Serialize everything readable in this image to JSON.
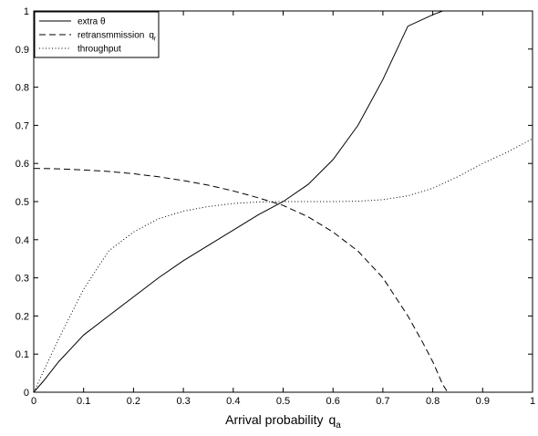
{
  "chart_data": {
    "type": "line",
    "title": "",
    "xlabel": "Arrival probability",
    "xlabel_symbol": "q",
    "xlabel_subscript": "a",
    "ylabel": "",
    "xlim": [
      0,
      1
    ],
    "ylim": [
      0,
      1
    ],
    "x_ticks": [
      "0",
      "0.1",
      "0.2",
      "0.3",
      "0.4",
      "0.5",
      "0.6",
      "0.7",
      "0.8",
      "0.9",
      "1"
    ],
    "y_ticks": [
      "0",
      "0.1",
      "0.2",
      "0.3",
      "0.4",
      "0.5",
      "0.6",
      "0.7",
      "0.8",
      "0.9",
      "1"
    ],
    "grid": false,
    "legend_position": "top-left",
    "series": [
      {
        "name": "extra θ",
        "style": "solid",
        "color": "#000000",
        "x": [
          0,
          0.02,
          0.05,
          0.1,
          0.15,
          0.2,
          0.25,
          0.3,
          0.35,
          0.4,
          0.45,
          0.5,
          0.55,
          0.6,
          0.65,
          0.7,
          0.75,
          0.8,
          0.82,
          0.84,
          1
        ],
        "y": [
          0,
          0.03,
          0.08,
          0.15,
          0.2,
          0.25,
          0.3,
          0.345,
          0.385,
          0.425,
          0.465,
          0.5,
          0.545,
          0.61,
          0.7,
          0.82,
          0.96,
          0.99,
          1.0,
          1.0,
          1.0
        ]
      },
      {
        "name": "retransmmission",
        "name_subscript": "q",
        "name_subscript_sub": "r",
        "style": "dashed",
        "color": "#000000",
        "x": [
          0,
          0.05,
          0.1,
          0.15,
          0.2,
          0.25,
          0.3,
          0.35,
          0.4,
          0.45,
          0.5,
          0.55,
          0.6,
          0.65,
          0.7,
          0.75,
          0.78,
          0.8,
          0.81,
          0.82,
          0.83
        ],
        "y": [
          0.587,
          0.586,
          0.583,
          0.579,
          0.573,
          0.565,
          0.555,
          0.543,
          0.528,
          0.51,
          0.49,
          0.46,
          0.42,
          0.37,
          0.3,
          0.2,
          0.13,
          0.08,
          0.05,
          0.02,
          0.0
        ]
      },
      {
        "name": "throughput",
        "style": "dotted",
        "color": "#000000",
        "x": [
          0,
          0.05,
          0.1,
          0.15,
          0.2,
          0.25,
          0.3,
          0.35,
          0.4,
          0.45,
          0.5,
          0.55,
          0.6,
          0.65,
          0.7,
          0.75,
          0.8,
          0.85,
          0.9,
          0.95,
          1
        ],
        "y": [
          0,
          0.14,
          0.27,
          0.37,
          0.42,
          0.455,
          0.475,
          0.487,
          0.495,
          0.499,
          0.5,
          0.5,
          0.5,
          0.501,
          0.505,
          0.515,
          0.535,
          0.565,
          0.6,
          0.63,
          0.665
        ]
      }
    ]
  }
}
